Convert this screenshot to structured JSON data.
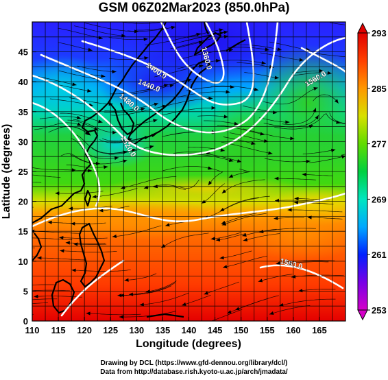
{
  "title": "GSM 06Z02Mar2023 (850.0hPa)",
  "xaxis": {
    "label": "Longitude (degrees)",
    "range": [
      110,
      170
    ],
    "ticks": [
      "110",
      "115",
      "120",
      "125",
      "130",
      "135",
      "140",
      "145",
      "150",
      "155",
      "160",
      "165"
    ]
  },
  "yaxis": {
    "label": "Latitude (degrees)",
    "range": [
      0,
      50
    ],
    "ticks": [
      "0",
      "5",
      "10",
      "15",
      "20",
      "25",
      "30",
      "35",
      "40",
      "45"
    ]
  },
  "colorbar": {
    "range": [
      253,
      293
    ],
    "ticks": [
      "253",
      "261",
      "269",
      "277",
      "285",
      "293"
    ],
    "colors": [
      "#d400c8",
      "#7800e6",
      "#0020ff",
      "#00a8ff",
      "#00e6c0",
      "#00d040",
      "#60dc00",
      "#d8e000",
      "#ff9800",
      "#ff4000",
      "#e00000"
    ]
  },
  "contours": {
    "color": "#ffffff",
    "labels": [
      {
        "text": "1360.0"
      },
      {
        "text": "1400.0"
      },
      {
        "text": "1440.0"
      },
      {
        "text": "1480.0"
      },
      {
        "text": "1520.0"
      },
      {
        "text": "1560.0"
      },
      {
        "text": "1560.0"
      }
    ]
  },
  "credits": [
    "Drawing by DCL (https://www.gfd-dennou.org/library/dcl/)",
    "Data from http://database.rish.kyoto-u.ac.jp/arch/jmadata/"
  ]
}
